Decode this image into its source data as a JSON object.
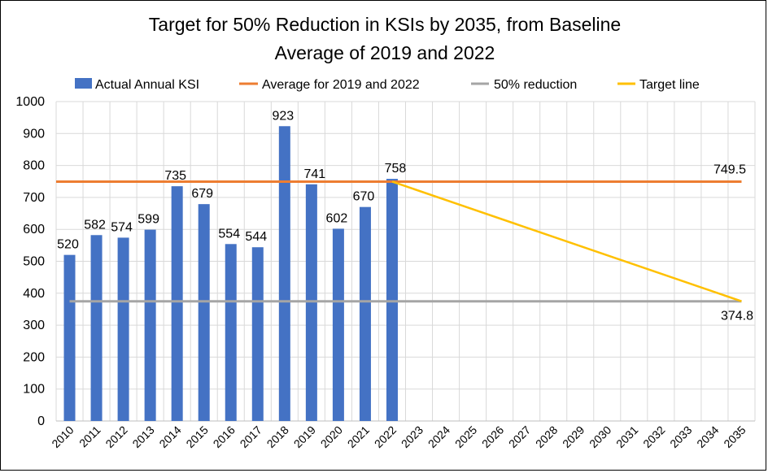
{
  "chart_data": {
    "type": "bar",
    "title_line1": "Target for 50% Reduction in KSIs by 2035, from Baseline",
    "title_line2": "Average of 2019 and 2022",
    "categories": [
      "2010",
      "2011",
      "2012",
      "2013",
      "2014",
      "2015",
      "2016",
      "2017",
      "2018",
      "2019",
      "2020",
      "2021",
      "2022",
      "2023",
      "2024",
      "2025",
      "2026",
      "2027",
      "2028",
      "2029",
      "2030",
      "2031",
      "2032",
      "2033",
      "2034",
      "2035"
    ],
    "ylim": [
      0,
      1000
    ],
    "yticks": [
      0,
      100,
      200,
      300,
      400,
      500,
      600,
      700,
      800,
      900,
      1000
    ],
    "grid": true,
    "legend_position": "top",
    "bar_series": {
      "name": "Actual Annual KSI",
      "color": "#4472C4",
      "values": [
        520,
        582,
        574,
        599,
        735,
        679,
        554,
        544,
        923,
        741,
        602,
        670,
        758
      ]
    },
    "average_line": {
      "name": "Average for 2019 and 2022",
      "color": "#ED7D31",
      "value": 749.5,
      "label": "749.5"
    },
    "reduction_line": {
      "name": "50% reduction",
      "color": "#A5A5A5",
      "value": 374.8,
      "label": "374.8"
    },
    "target_line": {
      "name": "Target line",
      "color": "#FFC000",
      "from": {
        "x": "2022",
        "y": 749.5
      },
      "to": {
        "x": "2035",
        "y": 374.8
      }
    },
    "highlight_labels": {
      "2019": "#ED7D31",
      "2022": "#ED7D31"
    }
  }
}
